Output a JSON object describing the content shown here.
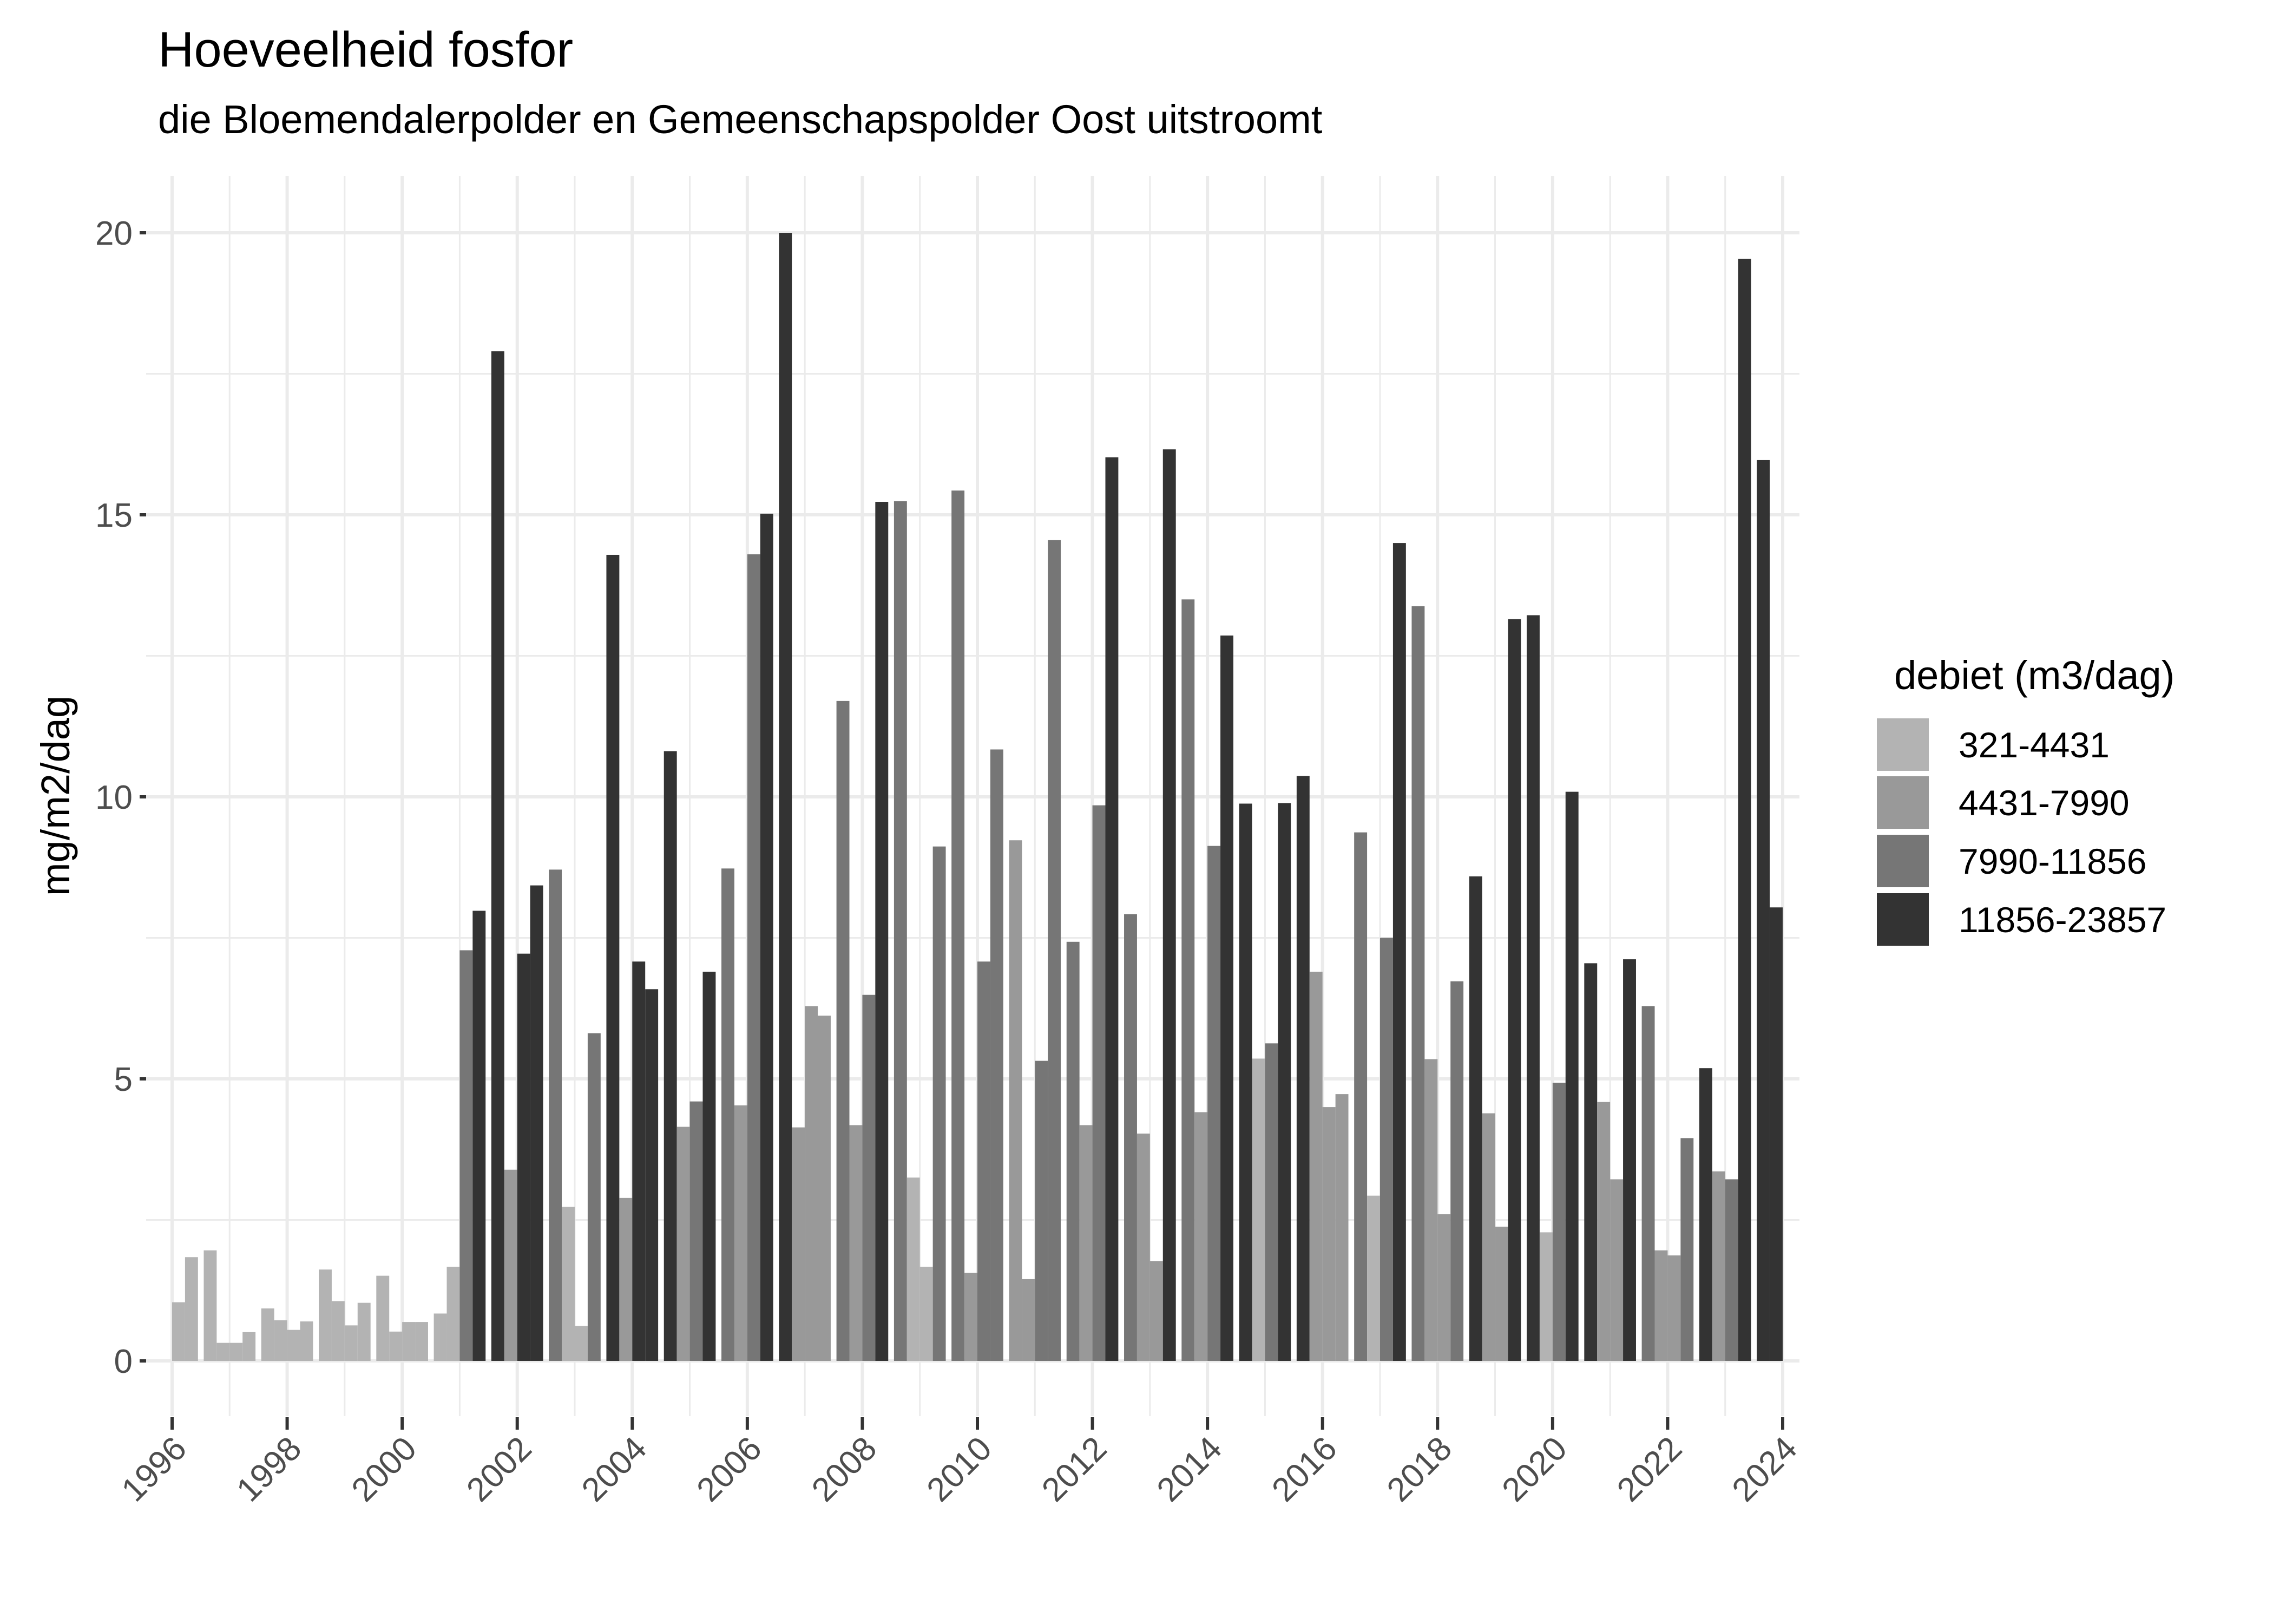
{
  "chart_data": {
    "type": "bar",
    "title": "Hoeveelheid fosfor",
    "subtitle": "die Bloemendalerpolder en Gemeenschapspolder Oost uitstroomt",
    "xlabel": "",
    "ylabel": "mg/m2/dag",
    "xlim": [
      1996,
      2024
    ],
    "ylim": [
      0,
      20
    ],
    "x_ticks": [
      "1996",
      "1998",
      "2000",
      "2002",
      "2004",
      "2006",
      "2008",
      "2010",
      "2012",
      "2014",
      "2016",
      "2018",
      "2020",
      "2022",
      "2024"
    ],
    "y_ticks": [
      "0",
      "5",
      "10",
      "15",
      "20"
    ],
    "grid": true,
    "legend": {
      "title": "debiet (m3/dag)",
      "placement": "right",
      "entries": [
        {
          "label": "321-4431",
          "color": "#b3b3b3"
        },
        {
          "label": "4431-7990",
          "color": "#999999"
        },
        {
          "label": "7990-11856",
          "color": "#767676"
        },
        {
          "label": "11856-23857",
          "color": "#333333"
        }
      ]
    },
    "groups": [
      {
        "year": 1996,
        "values": [
          null,
          null,
          1.04,
          1.84
        ],
        "classes": [
          null,
          null,
          0,
          0
        ]
      },
      {
        "year": 1997,
        "values": [
          1.96,
          0.32,
          0.32,
          0.51
        ],
        "classes": [
          0,
          0,
          0,
          0
        ]
      },
      {
        "year": 1998,
        "values": [
          0.93,
          0.72,
          0.55,
          0.7
        ],
        "classes": [
          0,
          0,
          0,
          0
        ]
      },
      {
        "year": 1999,
        "values": [
          1.62,
          1.06,
          0.63,
          1.03
        ],
        "classes": [
          0,
          0,
          0,
          0
        ]
      },
      {
        "year": 2000,
        "values": [
          1.51,
          0.52,
          0.69,
          0.69
        ],
        "classes": [
          0,
          0,
          0,
          0
        ]
      },
      {
        "year": 2001,
        "values": [
          0.84,
          1.67,
          7.28,
          7.98
        ],
        "classes": [
          0,
          0,
          2,
          3
        ]
      },
      {
        "year": 2002,
        "values": [
          17.9,
          3.39,
          7.22,
          8.43
        ],
        "classes": [
          3,
          1,
          3,
          3
        ]
      },
      {
        "year": 2003,
        "values": [
          8.71,
          2.73,
          0.62,
          5.81
        ],
        "classes": [
          2,
          0,
          0,
          2
        ]
      },
      {
        "year": 2004,
        "values": [
          14.29,
          2.89,
          7.08,
          6.59
        ],
        "classes": [
          3,
          1,
          3,
          3
        ]
      },
      {
        "year": 2005,
        "values": [
          10.81,
          4.15,
          4.6,
          6.9
        ],
        "classes": [
          3,
          1,
          2,
          3
        ]
      },
      {
        "year": 2006,
        "values": [
          8.73,
          4.53,
          14.3,
          15.02
        ],
        "classes": [
          2,
          1,
          2,
          3
        ]
      },
      {
        "year": 2007,
        "values": [
          20.0,
          4.14,
          6.29,
          6.12
        ],
        "classes": [
          3,
          1,
          1,
          1
        ]
      },
      {
        "year": 2008,
        "values": [
          11.7,
          4.18,
          6.49,
          15.23
        ],
        "classes": [
          2,
          1,
          2,
          3
        ]
      },
      {
        "year": 2009,
        "values": [
          15.24,
          3.25,
          1.67,
          9.12
        ],
        "classes": [
          2,
          0,
          0,
          2
        ]
      },
      {
        "year": 2010,
        "values": [
          15.43,
          1.56,
          7.08,
          10.84
        ],
        "classes": [
          2,
          1,
          2,
          2
        ]
      },
      {
        "year": 2011,
        "values": [
          9.23,
          1.45,
          5.32,
          14.55
        ],
        "classes": [
          1,
          1,
          2,
          2
        ]
      },
      {
        "year": 2012,
        "values": [
          7.43,
          4.18,
          9.85,
          16.02
        ],
        "classes": [
          2,
          1,
          2,
          3
        ]
      },
      {
        "year": 2013,
        "values": [
          7.92,
          4.03,
          1.77,
          16.16
        ],
        "classes": [
          2,
          1,
          1,
          3
        ]
      },
      {
        "year": 2014,
        "values": [
          13.5,
          4.41,
          9.13,
          12.86
        ],
        "classes": [
          2,
          1,
          2,
          3
        ]
      },
      {
        "year": 2015,
        "values": [
          9.88,
          5.36,
          5.63,
          9.89
        ],
        "classes": [
          3,
          0,
          2,
          3
        ]
      },
      {
        "year": 2016,
        "values": [
          10.37,
          6.9,
          4.5,
          4.73
        ],
        "classes": [
          3,
          1,
          1,
          1
        ]
      },
      {
        "year": 2017,
        "values": [
          9.37,
          2.93,
          7.5,
          14.5
        ],
        "classes": [
          2,
          0,
          2,
          3
        ]
      },
      {
        "year": 2018,
        "values": [
          13.38,
          5.35,
          2.6,
          6.73
        ],
        "classes": [
          2,
          1,
          1,
          2
        ]
      },
      {
        "year": 2019,
        "values": [
          8.59,
          4.39,
          2.38,
          13.15
        ],
        "classes": [
          3,
          1,
          1,
          3
        ]
      },
      {
        "year": 2020,
        "values": [
          13.22,
          2.28,
          4.93,
          10.09
        ],
        "classes": [
          3,
          0,
          2,
          3
        ]
      },
      {
        "year": 2021,
        "values": [
          7.05,
          4.59,
          3.22,
          7.12
        ],
        "classes": [
          3,
          1,
          1,
          3
        ]
      },
      {
        "year": 2022,
        "values": [
          6.29,
          1.96,
          1.87,
          3.95
        ],
        "classes": [
          2,
          1,
          1,
          2
        ]
      },
      {
        "year": 2023,
        "values": [
          5.19,
          3.36,
          3.22,
          19.54
        ],
        "classes": [
          3,
          1,
          2,
          3
        ]
      },
      {
        "year": 2024,
        "values": [
          15.97,
          8.04,
          null,
          null
        ],
        "classes": [
          3,
          3,
          null,
          null
        ]
      }
    ]
  }
}
